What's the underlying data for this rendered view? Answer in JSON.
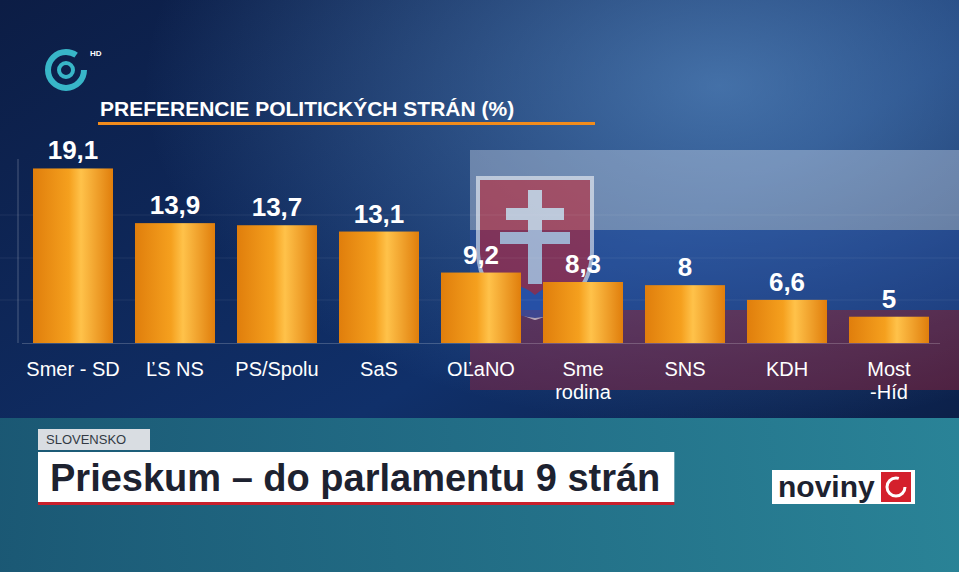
{
  "chart_data": {
    "type": "bar",
    "title": "PREFERENCIE POLITICKÝCH STRÁN (%)",
    "categories": [
      "Smer - SD",
      "ĽS NS",
      "PS/Spolu",
      "SaS",
      "OĽaNO",
      "Sme rodina",
      "SNS",
      "KDH",
      "Most -Híd"
    ],
    "values": [
      19.1,
      13.9,
      13.7,
      13.1,
      9.2,
      8.3,
      8,
      6.6,
      5
    ],
    "value_labels": [
      "19,1",
      "13,9",
      "13,7",
      "13,1",
      "9,2",
      "8,3",
      "8",
      "6,6",
      "5"
    ],
    "color": "#f5a01e",
    "ylim": [
      2.5,
      20
    ],
    "data_labels": true,
    "tick_labels": "x",
    "grid": false
  },
  "broadcast": {
    "logo": "HD",
    "section": "SLOVENSKO",
    "headline": "Prieskum – do parlamentu 9 strán",
    "brand": "noviny"
  }
}
